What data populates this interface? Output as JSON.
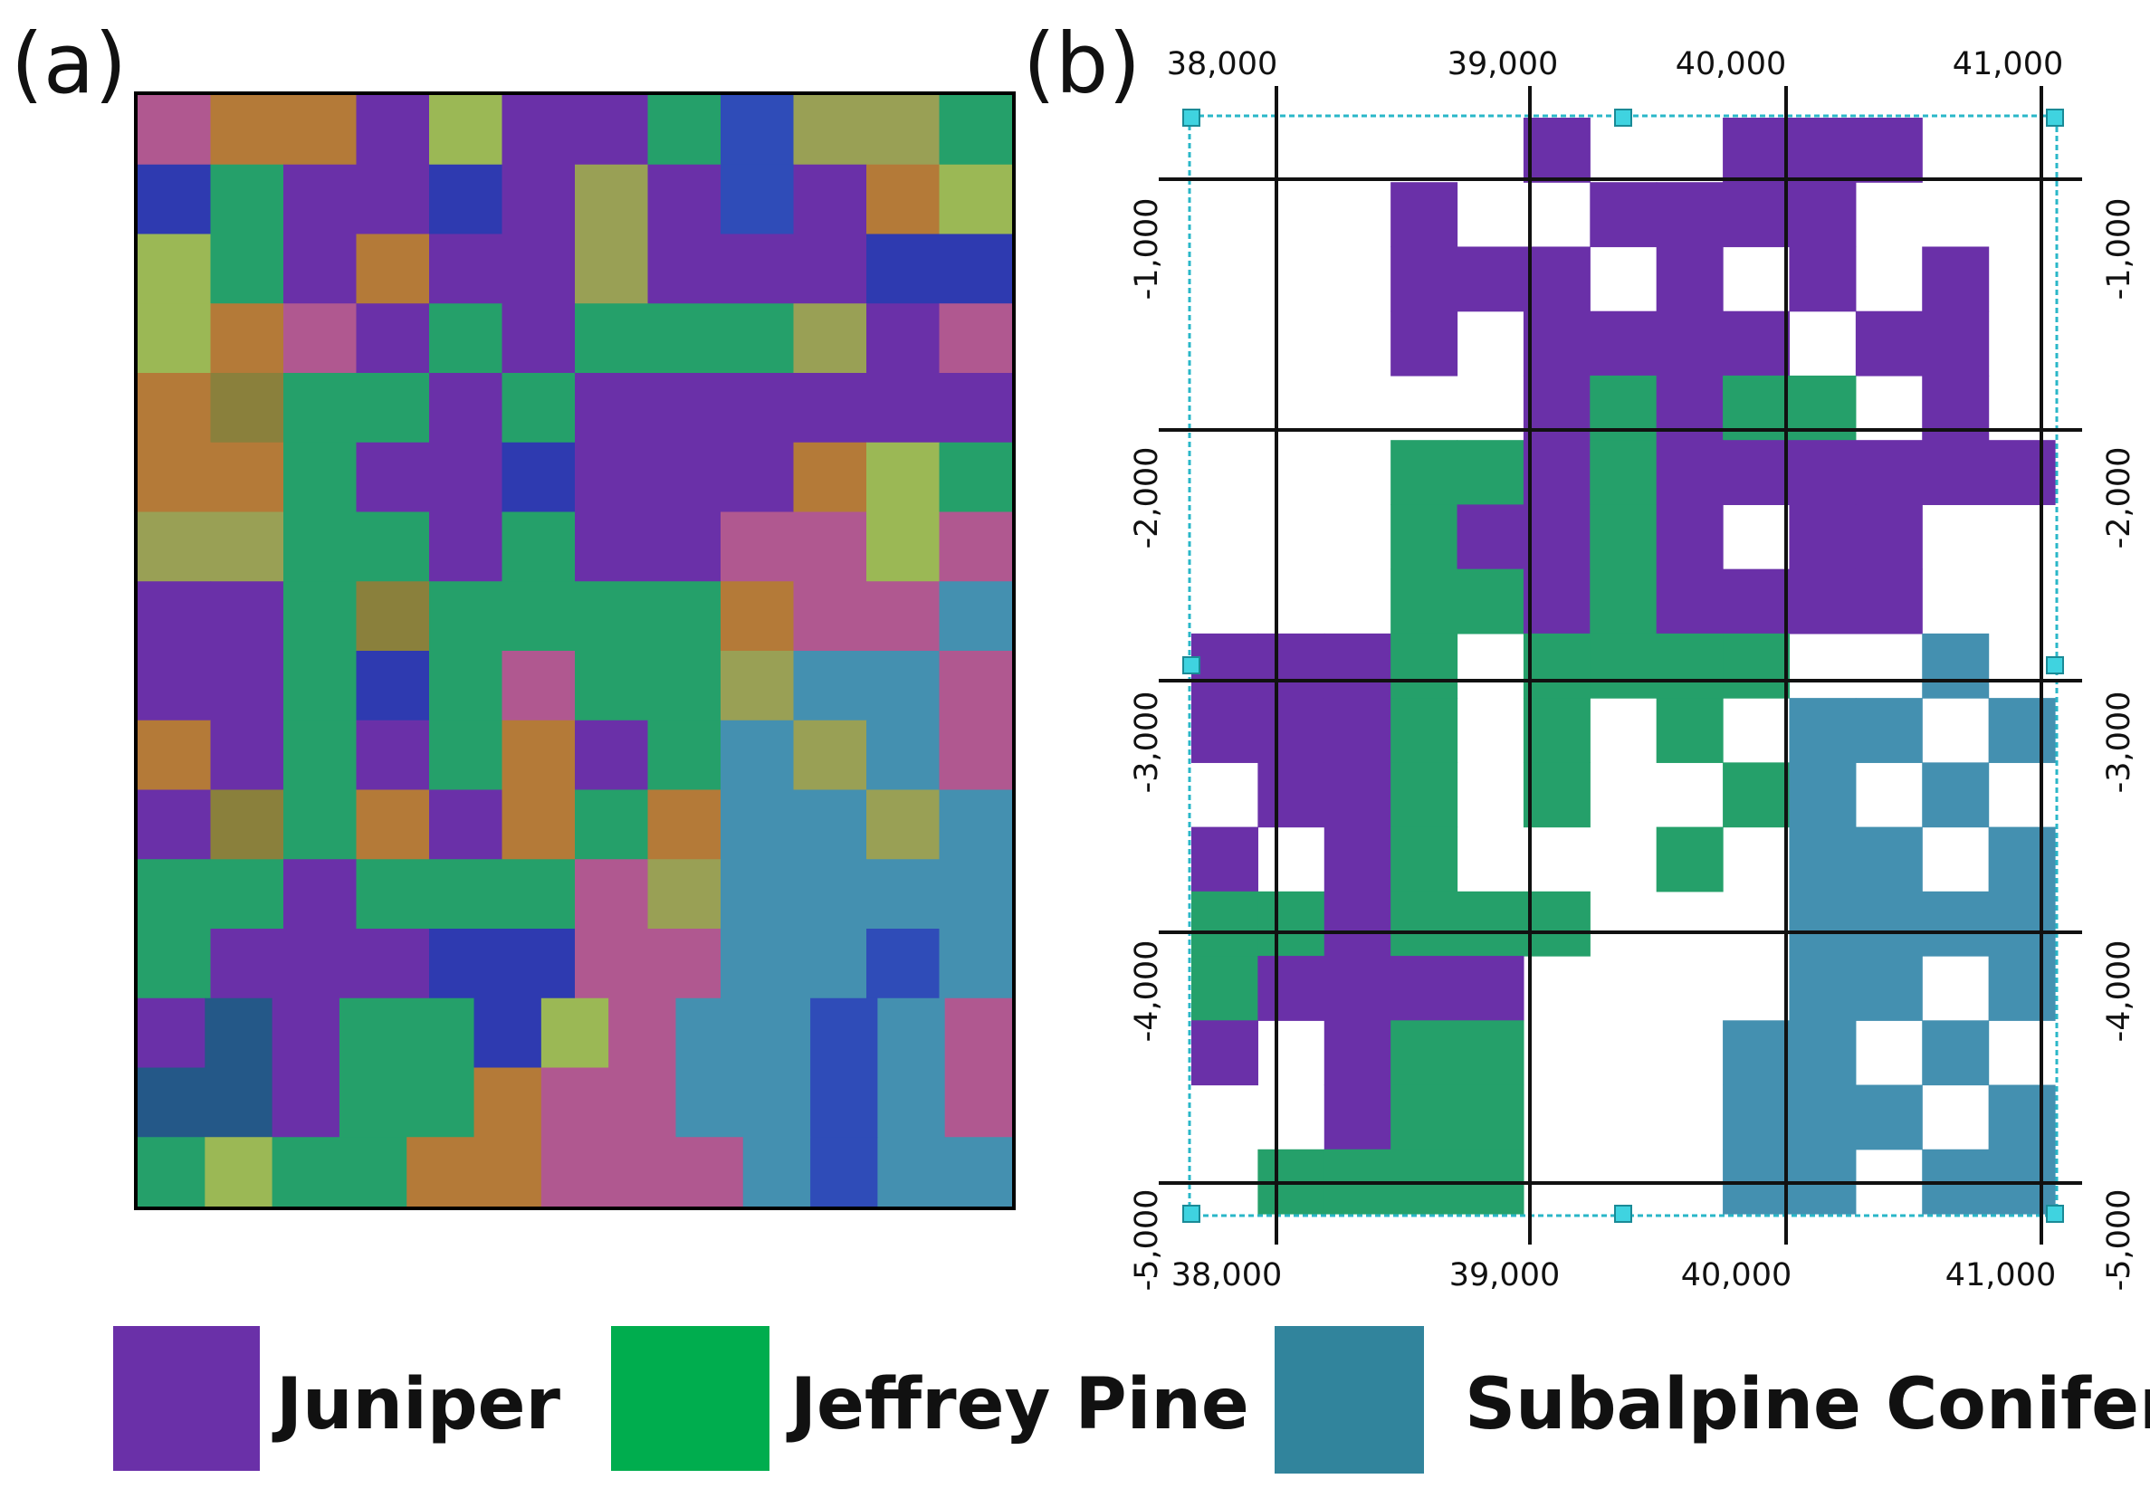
{
  "panels": {
    "a": {
      "label": "(a)",
      "palette": {
        "P": "#6a30a8",
        "G": "#25a06a",
        "B": "#2e3ab0",
        "b": "#2f4cb8",
        "O": "#b47a38",
        "L": "#9bb855",
        "l": "#99a055",
        "K": "#b05890",
        "T": "#4490b0",
        "D": "#245888",
        "M": "#8a803c"
      },
      "rows": [
        "KOOPLPPGbllG",
        "BGPPBPlPbPOL",
        "LGPOPPlPPPBB",
        "LOKPGPGGGlPK",
        "OMGGPGPPPPPP",
        "OOGPPBPPPOLG",
        "llGGPGPPKKLK",
        "PPGMGGGGOKKT",
        "PPGBGKGGlTTK",
        "OPGPGOPGTlTK",
        "PMGOPOGOTTlT",
        "GGPGGGKlTTTT",
        "GPPPBBKKTTbT",
        "PDPGGBLKTTbTK",
        "DDPGGOKKTTbTK",
        "GLGGOOKKKTbTT"
      ]
    },
    "b": {
      "label": "(b)",
      "top_ticks": [
        "38,000",
        "39,000",
        "40,000",
        "41,000"
      ],
      "bottom_ticks": [
        "38,000",
        "39,000",
        "40,000",
        "41,000"
      ],
      "left_ticks": [
        "-1,000",
        "-2,000",
        "-3,000",
        "-4,000",
        "-5,000"
      ],
      "right_ticks": [
        "-1,000",
        "-2,000",
        "-3,000",
        "-4,000",
        "-5,000"
      ],
      "palette": {
        "P": "#6a30a8",
        "G": "#25a06a",
        "T": "#4490b0"
      },
      "rows": [
        ".....P..PPP..",
        "...P..PPPP...",
        "...PPP.P.P.P.",
        "...P.PPPP.PP.",
        ".....PGPGG.P.",
        "...GGPGPPPPPP",
        "...GPPGP.PP..",
        "...GGPGPPPP..",
        "PPPG.GGGG..T.",
        "PPPG.G.G.TT.T",
        ".PPG.G..GT.T.",
        "P.PG...G.TT.T",
        "GGPGGG...TTTT",
        "GPPPP....TT.T",
        "P.PGG...TT.T.",
        "..PGG...TTT.T",
        ".GGGG...TT.TT"
      ]
    }
  },
  "legend": [
    {
      "label": "Juniper",
      "color": "#6a30a8"
    },
    {
      "label": "Jeffrey Pine",
      "color": "#00ad4e"
    },
    {
      "label": "Subalpine Conifer",
      "color": "#31849c"
    }
  ]
}
